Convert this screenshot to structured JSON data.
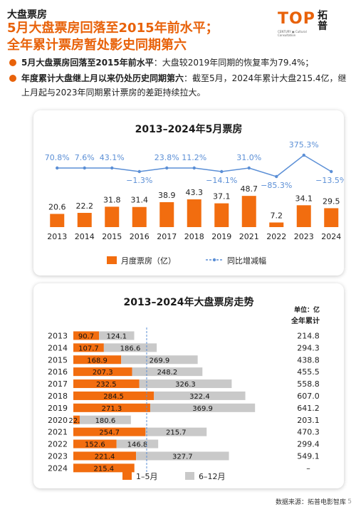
{
  "header": {
    "section": "大盘票房",
    "title_line1": "5月大盘票房回落至2015年前水平；",
    "title_line2": "全年累计票房暂处影史同期第六"
  },
  "logo": {
    "top": "TOP",
    "cn_line1": "拓",
    "cn_line2": "普",
    "sub": "CENTURY ▣ Cultural Consultation"
  },
  "bullets": [
    {
      "bold": "5月大盘票房回落至2015年前水平",
      "text": "：大盘较2019年同期的恢复率为79.4%；"
    },
    {
      "bold": "年度累计大盘继上月以来仍处历史同期第六",
      "text": "：截至5月，2024年累计大盘215.4亿，继上月起与2023年同期累计票房的差距持续拉大。"
    }
  ],
  "colors": {
    "accent": "#e8620a",
    "bar_orange": "#f26d0f",
    "bar_gray": "#c9c9c9",
    "line_blue": "#5b8fd6"
  },
  "chart_data": [
    {
      "type": "bar",
      "title": "2013–2024年5月票房",
      "categories": [
        "2013",
        "2014",
        "2015",
        "2016",
        "2017",
        "2018",
        "2019",
        "2021",
        "2022",
        "2023",
        "2024"
      ],
      "series": [
        {
          "name": "月度票房（亿）",
          "values": [
            20.6,
            22.2,
            31.8,
            31.4,
            38.9,
            43.3,
            37.1,
            48.7,
            7.2,
            34.1,
            29.5
          ],
          "labels": [
            "20.6",
            "22.2",
            "31.8",
            "31.4",
            "38.9",
            "43.3",
            "37.1",
            "48.7",
            "7.2",
            "34.1",
            "29.5"
          ]
        },
        {
          "name": "同比增减幅",
          "values": [
            70.8,
            7.6,
            43.1,
            -1.3,
            23.8,
            11.2,
            -14.1,
            31.0,
            -85.3,
            375.3,
            -13.5
          ],
          "labels": [
            "70.8%",
            "7.6%",
            "43.1%",
            "−1.3%",
            "23.8%",
            "11.2%",
            "−14.1%",
            "31.0%",
            "−85.3%",
            "375.3%",
            "−13.5%"
          ]
        }
      ],
      "legend": [
        "月度票房（亿）",
        "同比增减幅"
      ]
    },
    {
      "type": "bar",
      "title": "2013–2024年大盘票房走势",
      "unit": "单位：亿",
      "total_header": "全年累计",
      "categories": [
        "2013",
        "2014",
        "2015",
        "2016",
        "2017",
        "2018",
        "2019",
        "2020",
        "2021",
        "2022",
        "2023",
        "2024"
      ],
      "series": [
        {
          "name": "1–5月",
          "values": [
            90.7,
            107.7,
            168.9,
            207.3,
            232.5,
            284.5,
            271.3,
            22.5,
            254.7,
            152.6,
            221.4,
            215.4
          ],
          "labels": [
            "90.7",
            "107.7",
            "168.9",
            "207.3",
            "232.5",
            "284.5",
            "271.3",
            "22.5",
            "254.7",
            "152.6",
            "221.4",
            "215.4"
          ]
        },
        {
          "name": "6–12月",
          "values": [
            124.1,
            186.6,
            269.9,
            248.2,
            326.3,
            322.4,
            369.9,
            180.6,
            215.7,
            146.8,
            327.7,
            0
          ],
          "labels": [
            "124.1",
            "186.6",
            "269.9",
            "248.2",
            "326.3",
            "322.4",
            "369.9",
            "180.6",
            "215.7",
            "146.8",
            "327.7",
            ""
          ]
        }
      ],
      "totals": [
        "214.8",
        "294.3",
        "438.8",
        "455.5",
        "558.8",
        "607.0",
        "641.2",
        "203.1",
        "470.3",
        "299.4",
        "549.1",
        "–"
      ],
      "legend": [
        "1–5月",
        "6–12月"
      ]
    }
  ],
  "footer": {
    "source": "数据来源：拓普电影智库",
    "page": "5"
  }
}
